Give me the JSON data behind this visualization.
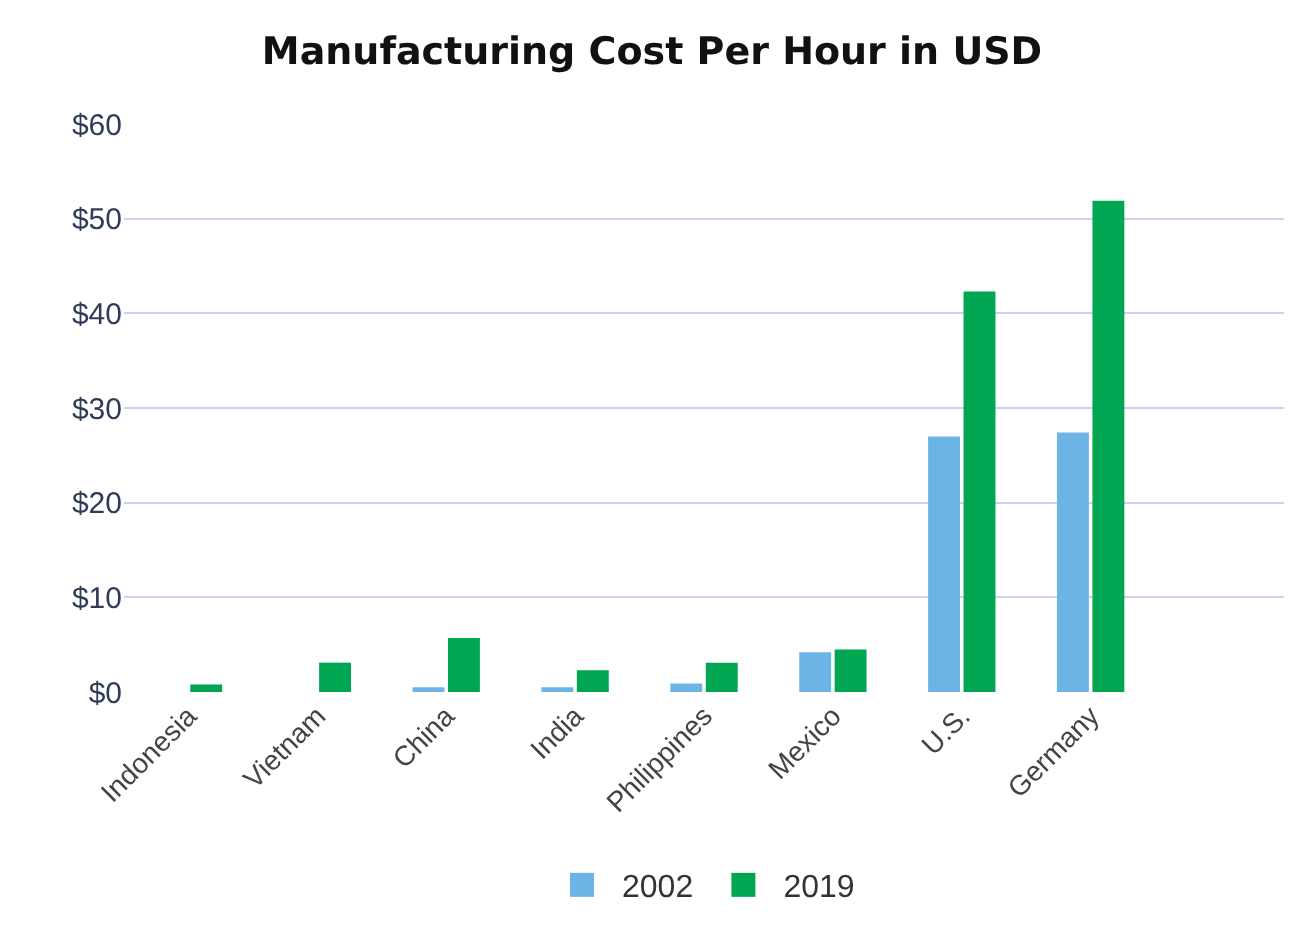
{
  "chart_data": {
    "type": "bar",
    "title": "Manufacturing Cost Per Hour in USD",
    "categories": [
      "Indonesia",
      "Vietnam",
      "China",
      "India",
      "Philippines",
      "Mexico",
      "U.S.",
      "Germany",
      null
    ],
    "series": [
      {
        "name": "2002",
        "color": "#6cb4e6",
        "values": [
          null,
          null,
          0.5,
          0.5,
          0.9,
          4.2,
          27.0,
          27.4,
          null
        ]
      },
      {
        "name": "2019",
        "color": "#00a651",
        "values": [
          0.8,
          3.1,
          5.7,
          2.3,
          3.1,
          4.5,
          42.3,
          51.9,
          null
        ]
      }
    ],
    "ylim": [
      0,
      60
    ],
    "yticks": [
      {
        "value": 0,
        "label": "$0"
      },
      {
        "value": 10,
        "label": "$10"
      },
      {
        "value": 20,
        "label": "$20"
      },
      {
        "value": 30,
        "label": "$30"
      },
      {
        "value": 40,
        "label": "$40"
      },
      {
        "value": 50,
        "label": "$50"
      },
      {
        "value": 60,
        "label": "$60"
      }
    ],
    "grid": "y",
    "legend": "bottom"
  }
}
